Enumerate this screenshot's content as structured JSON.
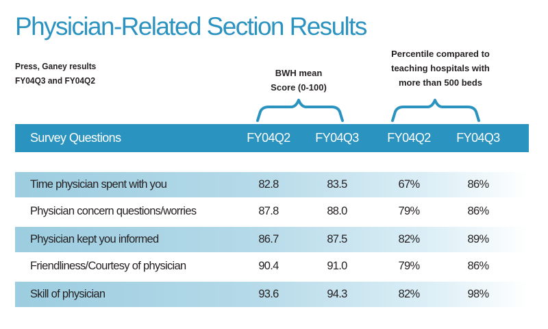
{
  "chart_data": {
    "type": "table",
    "title": "Physician-Related Section Results",
    "subtitle": [
      "Press, Ganey results",
      "FY04Q3 and FY04Q2"
    ],
    "group_labels": {
      "bwh_mean": [
        "BWH mean",
        "Score (0-100)"
      ],
      "percentile": [
        "Percentile compared to",
        "teaching hospitals with",
        "more than 500 beds"
      ]
    },
    "columns": [
      "Survey Questions",
      "FY04Q2",
      "FY04Q3",
      "FY04Q2",
      "FY04Q3"
    ],
    "rows": [
      [
        "Time physician spent with you",
        "82.8",
        "83.5",
        "67%",
        "86%"
      ],
      [
        "Physician concern questions/worries",
        "87.8",
        "88.0",
        "79%",
        "86%"
      ],
      [
        "Physician kept you informed",
        "86.7",
        "87.5",
        "82%",
        "89%"
      ],
      [
        "Friendliness/Courtesy of physician",
        "90.4",
        "91.0",
        "79%",
        "86%"
      ],
      [
        "Skill of physician",
        "93.6",
        "94.3",
        "82%",
        "98%"
      ]
    ]
  },
  "colors": {
    "title": "#2c93c1",
    "header_bg": "#2a93c0",
    "header_text": "#ffffff",
    "row_shade": "#9ccde0",
    "brace": "#2a93c0"
  }
}
